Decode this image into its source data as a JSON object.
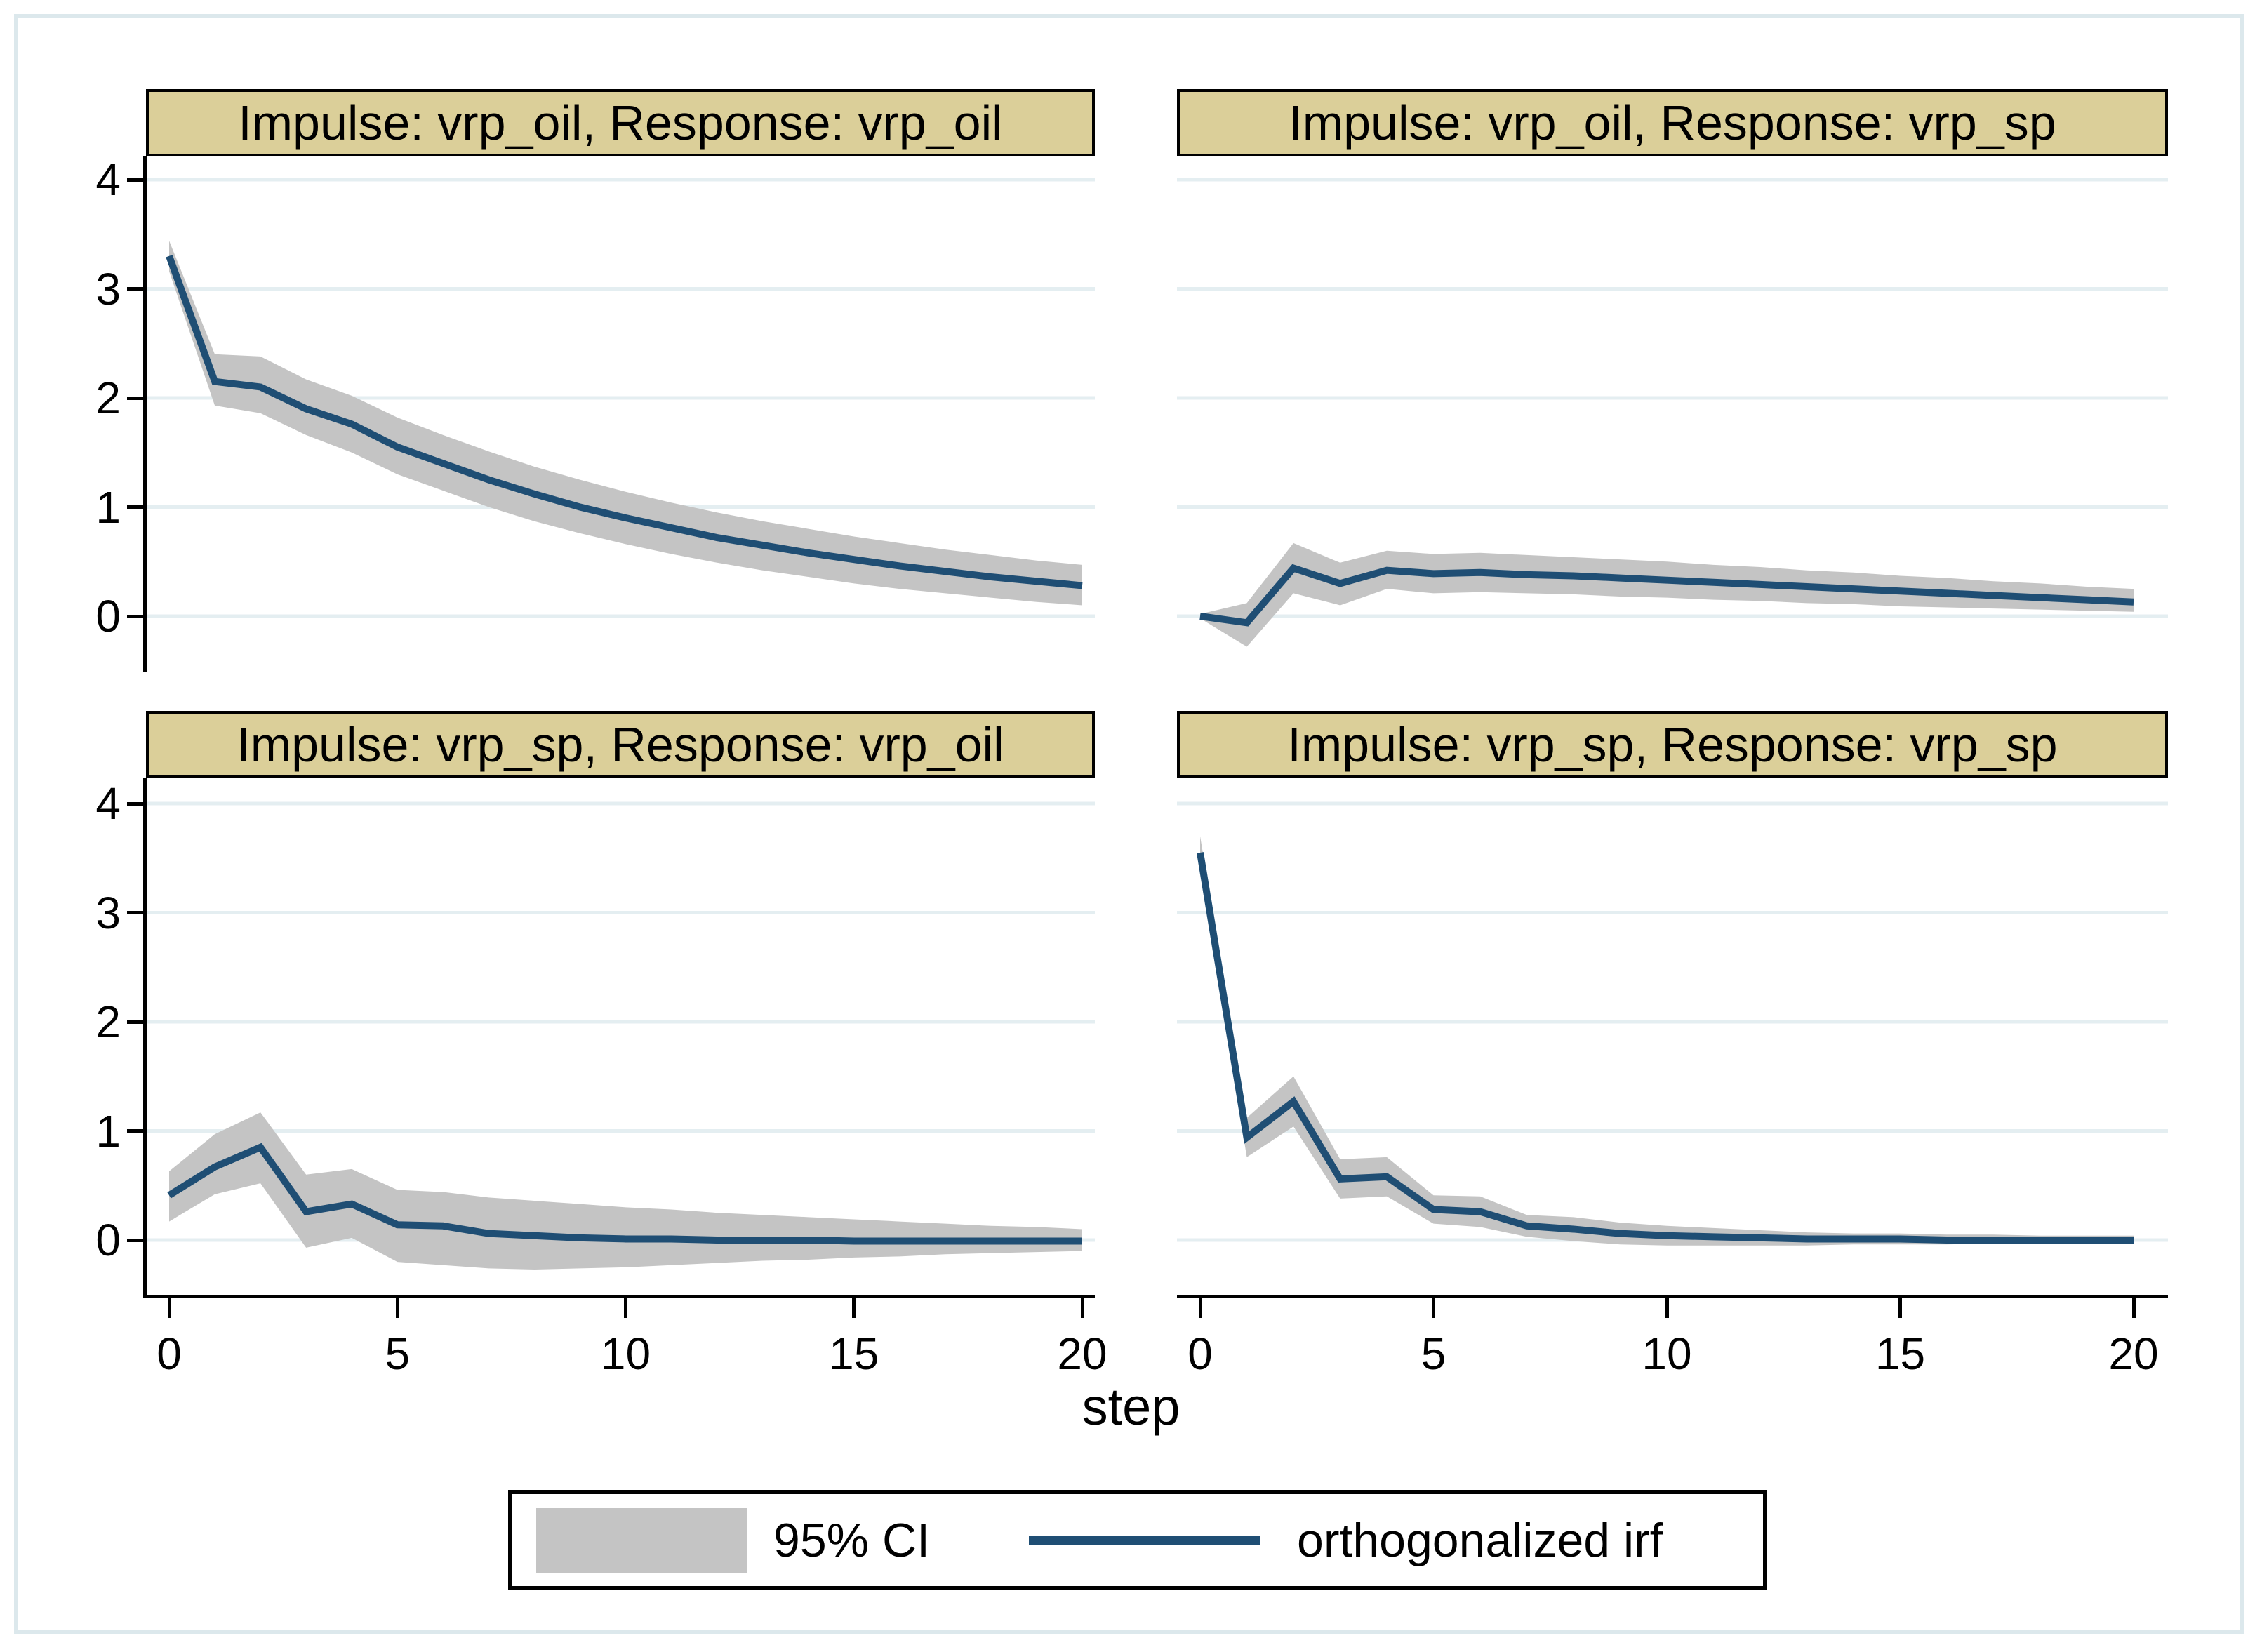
{
  "chart_data": {
    "type": "line",
    "description": "2x2 grid of orthogonalized impulse-response functions with 95% confidence bands",
    "x": [
      0,
      1,
      2,
      3,
      4,
      5,
      6,
      7,
      8,
      9,
      10,
      11,
      12,
      13,
      14,
      15,
      16,
      17,
      18,
      19,
      20
    ],
    "xlabel": "step",
    "x_ticks": [
      0,
      5,
      10,
      15,
      20
    ],
    "y_ticks": [
      0,
      1,
      2,
      3,
      4
    ],
    "ylim": [
      -0.5,
      4.2
    ],
    "grid": true,
    "panels": [
      {
        "id": "oil_oil",
        "title": "Impulse: vrp_oil, Response: vrp_oil",
        "irf": [
          3.3,
          2.15,
          2.1,
          1.9,
          1.76,
          1.55,
          1.4,
          1.25,
          1.12,
          1.0,
          0.9,
          0.81,
          0.72,
          0.65,
          0.58,
          0.52,
          0.46,
          0.41,
          0.36,
          0.32,
          0.28
        ],
        "ci_lower": [
          3.16,
          1.93,
          1.86,
          1.66,
          1.5,
          1.3,
          1.15,
          1.0,
          0.87,
          0.76,
          0.66,
          0.57,
          0.49,
          0.42,
          0.36,
          0.3,
          0.25,
          0.21,
          0.17,
          0.13,
          0.1
        ],
        "ci_upper": [
          3.44,
          2.4,
          2.38,
          2.17,
          2.02,
          1.82,
          1.66,
          1.51,
          1.37,
          1.25,
          1.14,
          1.04,
          0.95,
          0.87,
          0.8,
          0.73,
          0.67,
          0.61,
          0.56,
          0.51,
          0.47
        ]
      },
      {
        "id": "oil_sp",
        "title": "Impulse: vrp_oil, Response: vrp_sp",
        "irf": [
          0.0,
          -0.06,
          0.44,
          0.3,
          0.42,
          0.39,
          0.4,
          0.38,
          0.37,
          0.35,
          0.33,
          0.31,
          0.29,
          0.27,
          0.25,
          0.23,
          0.21,
          0.19,
          0.17,
          0.15,
          0.13
        ],
        "ci_lower": [
          -0.02,
          -0.28,
          0.21,
          0.1,
          0.25,
          0.21,
          0.22,
          0.21,
          0.2,
          0.18,
          0.17,
          0.15,
          0.14,
          0.12,
          0.11,
          0.09,
          0.08,
          0.07,
          0.06,
          0.05,
          0.04
        ],
        "ci_upper": [
          0.02,
          0.12,
          0.67,
          0.49,
          0.6,
          0.57,
          0.58,
          0.56,
          0.54,
          0.52,
          0.5,
          0.47,
          0.45,
          0.42,
          0.4,
          0.37,
          0.35,
          0.32,
          0.3,
          0.27,
          0.25
        ]
      },
      {
        "id": "sp_oil",
        "title": "Impulse: vrp_sp, Response: vrp_oil",
        "irf": [
          0.41,
          0.67,
          0.85,
          0.26,
          0.33,
          0.14,
          0.13,
          0.06,
          0.04,
          0.02,
          0.01,
          0.01,
          0.0,
          0.0,
          0.0,
          -0.01,
          -0.01,
          -0.01,
          -0.01,
          -0.01,
          -0.01
        ],
        "ci_lower": [
          0.17,
          0.42,
          0.52,
          -0.07,
          0.02,
          -0.2,
          -0.23,
          -0.26,
          -0.27,
          -0.26,
          -0.25,
          -0.23,
          -0.21,
          -0.19,
          -0.18,
          -0.16,
          -0.15,
          -0.13,
          -0.12,
          -0.11,
          -0.1
        ],
        "ci_upper": [
          0.63,
          0.97,
          1.17,
          0.6,
          0.65,
          0.46,
          0.44,
          0.39,
          0.36,
          0.33,
          0.3,
          0.28,
          0.25,
          0.23,
          0.21,
          0.19,
          0.17,
          0.15,
          0.13,
          0.12,
          0.1
        ]
      },
      {
        "id": "sp_sp",
        "title": "Impulse: vrp_sp, Response: vrp_sp",
        "irf": [
          3.55,
          0.94,
          1.27,
          0.56,
          0.58,
          0.28,
          0.26,
          0.13,
          0.1,
          0.06,
          0.04,
          0.03,
          0.02,
          0.01,
          0.01,
          0.01,
          0.0,
          0.0,
          0.0,
          0.0,
          0.0
        ],
        "ci_lower": [
          3.4,
          0.76,
          1.04,
          0.38,
          0.4,
          0.15,
          0.12,
          0.03,
          -0.01,
          -0.04,
          -0.05,
          -0.05,
          -0.05,
          -0.05,
          -0.04,
          -0.04,
          -0.04,
          -0.03,
          -0.03,
          -0.03,
          -0.03
        ],
        "ci_upper": [
          3.7,
          1.12,
          1.5,
          0.74,
          0.76,
          0.41,
          0.4,
          0.23,
          0.21,
          0.16,
          0.13,
          0.11,
          0.09,
          0.07,
          0.06,
          0.06,
          0.05,
          0.05,
          0.04,
          0.04,
          0.04
        ]
      }
    ],
    "legend": {
      "position": "bottom-center",
      "ci_label": "95% CI",
      "irf_label": "orthogonalized irf"
    }
  },
  "colors": {
    "irf_line": "#1f4e74",
    "ci_band": "#c4c4c4",
    "panel_title_bg": "#dbcf99",
    "grid_line": "#e4eef1",
    "frame_border": "#dce8ec",
    "axis": "#000000",
    "text": "#000000",
    "background": "#ffffff"
  }
}
